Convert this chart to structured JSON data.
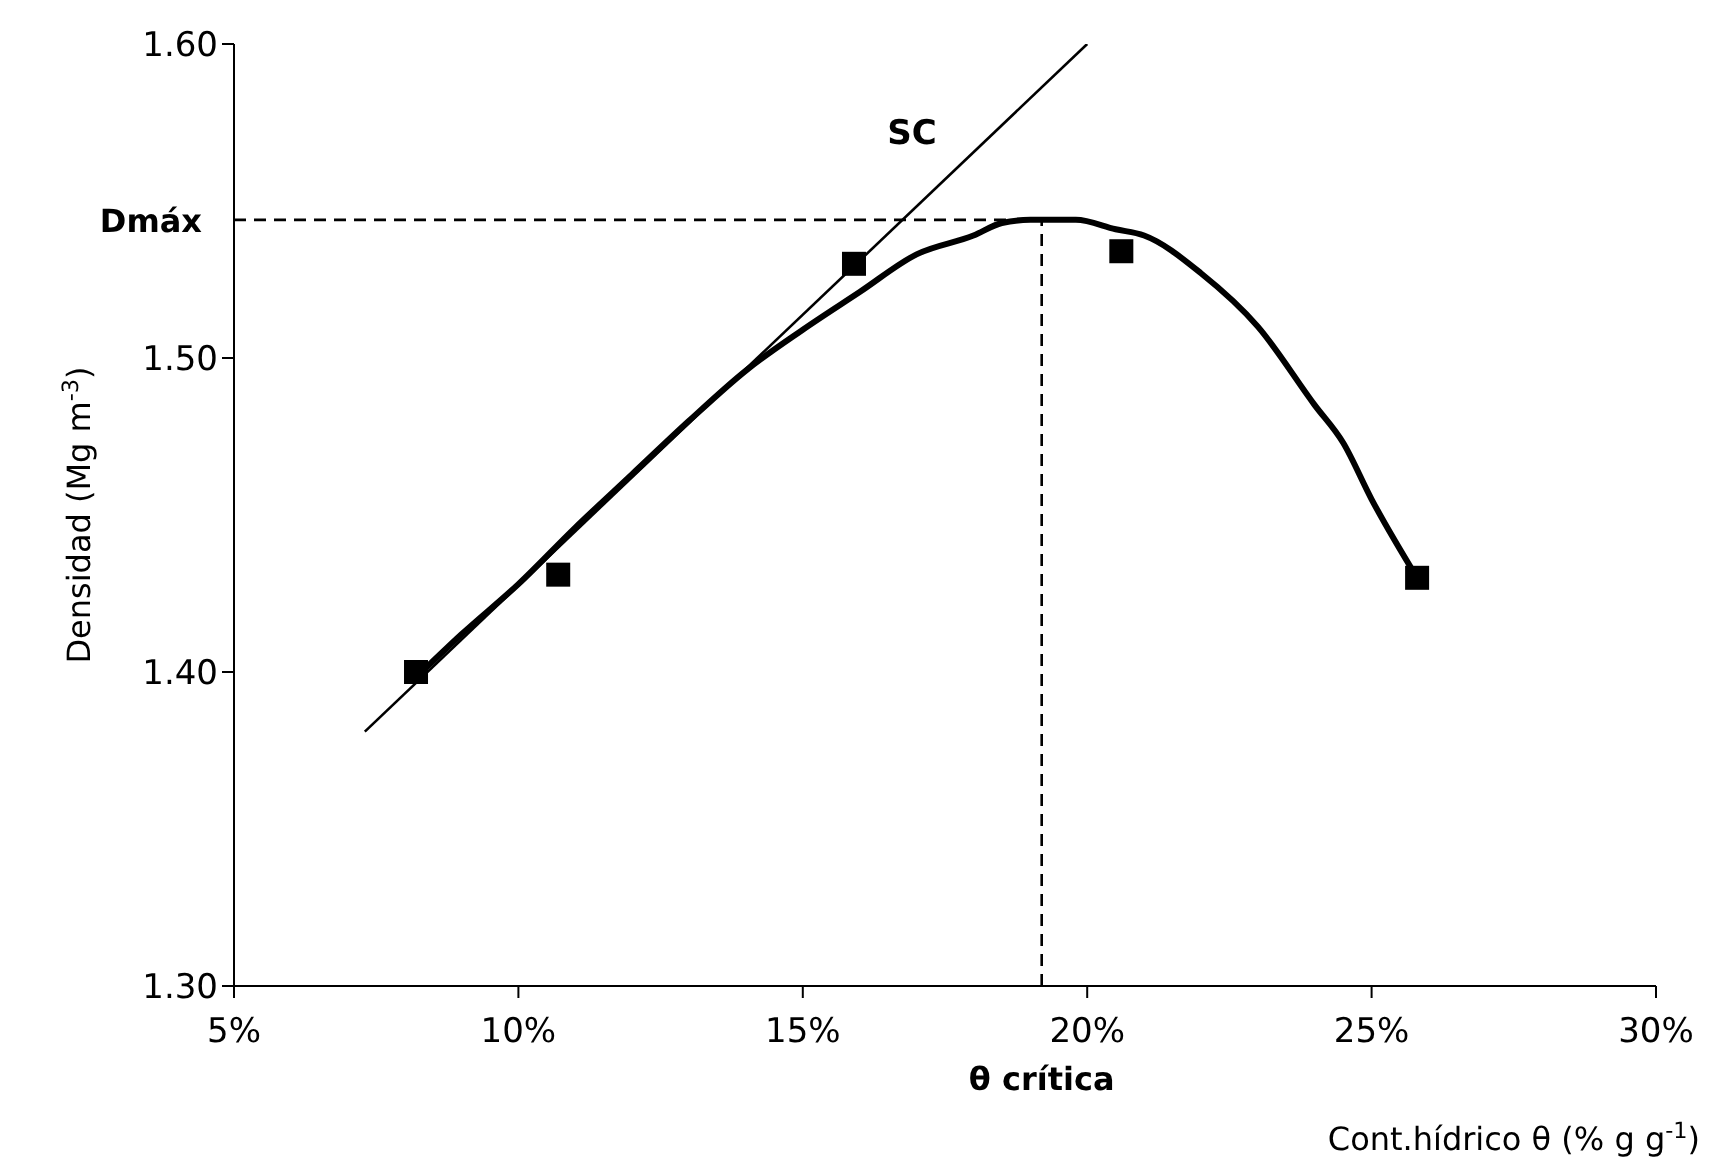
{
  "chart_data": {
    "type": "scatter",
    "xlabel": "Cont.hídrico θ (% g g$^{-1}$)",
    "ylabel": "Densidad (Mg m$^{-3}$)",
    "xlim": [
      5,
      30
    ],
    "xticks": [
      {
        "value": 5,
        "label": "5%"
      },
      {
        "value": 10,
        "label": "10%"
      },
      {
        "value": 15,
        "label": "15%"
      },
      {
        "value": 20,
        "label": "20%"
      },
      {
        "value": 25,
        "label": "25%"
      },
      {
        "value": 30,
        "label": "30%"
      }
    ],
    "ylim": [
      1.3,
      1.6
    ],
    "yticks": [
      {
        "value": 1.3,
        "label": "1.30"
      },
      {
        "value": 1.4,
        "label": "1.40"
      },
      {
        "value": 1.5,
        "label": "1.50"
      },
      {
        "value": 1.6,
        "label": "1.60"
      }
    ],
    "series": [
      {
        "marker": "square",
        "color": "#000000",
        "x": [
          8.2,
          10.7,
          15.9,
          20.6,
          25.8
        ],
        "values": [
          1.4,
          1.431,
          1.53,
          1.534,
          1.43
        ]
      },
      {
        "type": "line",
        "line_style": "solid",
        "color": "#000000",
        "x": [
          8.3,
          9,
          10,
          11,
          12,
          13,
          14,
          15,
          16,
          17,
          18,
          18.5,
          19,
          19.8,
          20.5,
          21,
          22,
          23,
          24,
          24.5,
          25,
          25.8
        ],
        "values": [
          1.4,
          1.412,
          1.428,
          1.446,
          1.463,
          1.48,
          1.496,
          1.509,
          1.521,
          1.533,
          1.539,
          1.543,
          1.544,
          1.544,
          1.541,
          1.539,
          1.527,
          1.51,
          1.485,
          1.473,
          1.455,
          1.43
        ]
      },
      {
        "type": "line",
        "name": "SC",
        "line_style": "solid",
        "color": "#000000",
        "x": [
          7.3,
          20.0
        ],
        "values": [
          1.381,
          1.6
        ]
      }
    ],
    "ref_lines": [
      {
        "axis": "y",
        "value": 1.544,
        "label": "Dmáx",
        "line_style": "dashed",
        "color": "#000000"
      },
      {
        "axis": "x",
        "value": 19.2,
        "label": "θ crítica",
        "line_style": "dashed",
        "color": "#000000"
      }
    ]
  }
}
